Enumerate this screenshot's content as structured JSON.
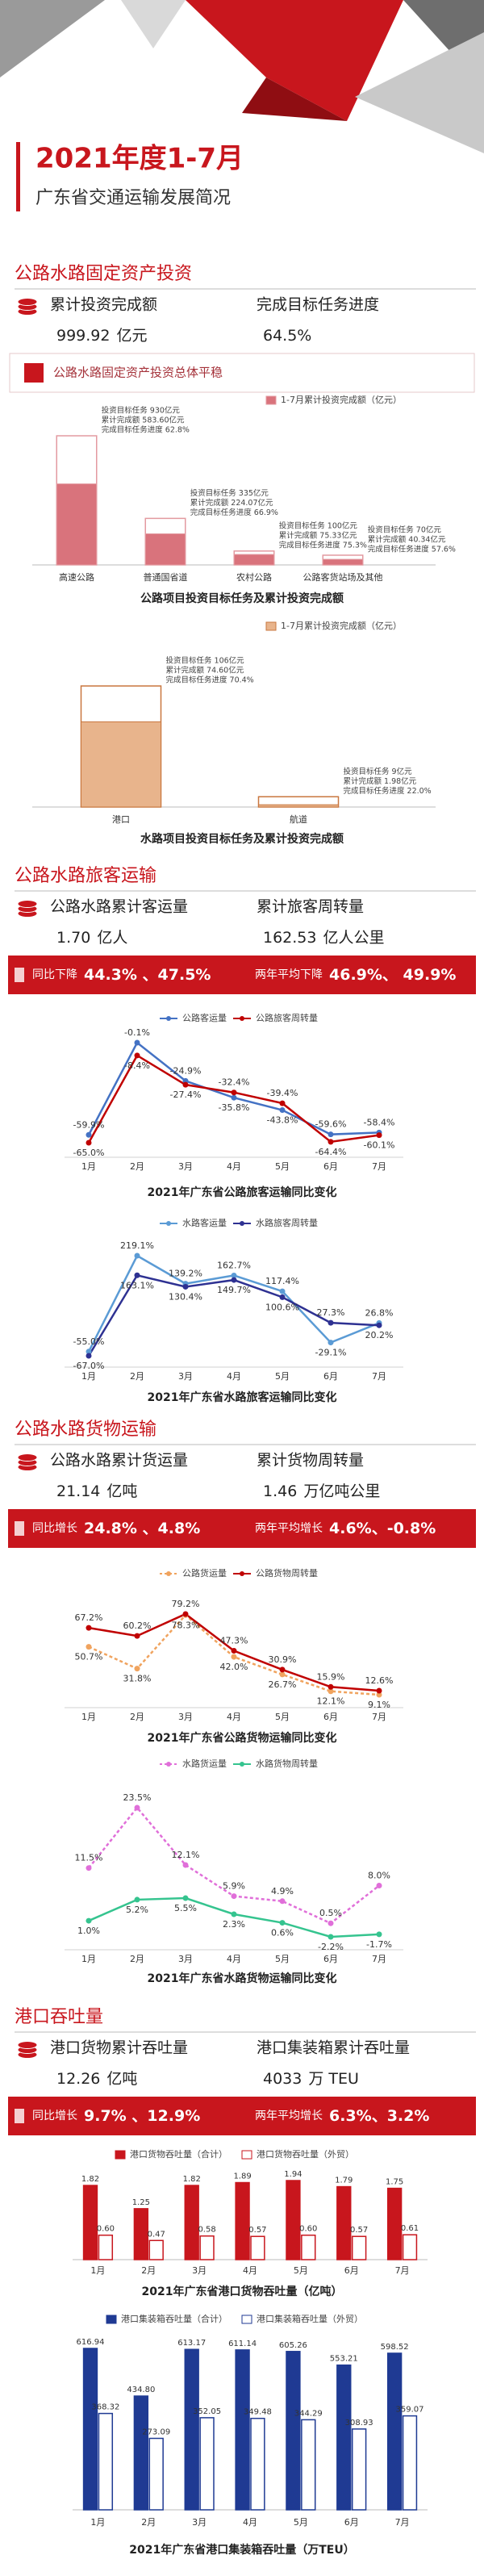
{
  "header": {
    "title": "2021年度1-7月",
    "subtitle": "广东省交通运输发展简况"
  },
  "sections": [
    {
      "heading": "公路水路固定资产投资",
      "stats": [
        {
          "label": "累计投资完成额",
          "value": "999.92",
          "unit": "亿元"
        },
        {
          "label": "完成目标任务进度",
          "value": "64.5%"
        }
      ],
      "banner": [
        "公路水路固定资产投资总体平稳"
      ]
    },
    {
      "heading": "公路水路旅客运输",
      "stats": [
        {
          "label": "公路水路累计客运量",
          "value": "1.70",
          "unit": "亿人"
        },
        {
          "label": "累计旅客周转量",
          "value": "162.53",
          "unit": "亿人公里"
        }
      ],
      "banner": [
        "同比下降",
        "44.3% 、47.5%",
        "两年平均下降",
        "46.9%、 49.9%"
      ]
    },
    {
      "heading": "公路水路货物运输",
      "stats": [
        {
          "label": "公路水路累计货运量",
          "value": "21.14",
          "unit": "亿吨"
        },
        {
          "label": "累计货物周转量",
          "value": "1.46",
          "unit": "万亿吨公里"
        }
      ],
      "banner": [
        "同比增长",
        "24.8% 、4.8%",
        "两年平均增长",
        "4.6%、-0.8%"
      ]
    },
    {
      "heading": "港口吞吐量",
      "stats": [
        {
          "label": "港口货物累计吞吐量",
          "value": "12.26",
          "unit": "亿吨"
        },
        {
          "label": "港口集装箱累计吞吐量",
          "value": "4033",
          "unit": "万 TEU"
        }
      ],
      "banner": [
        "同比增长",
        "9.7% 、12.9%",
        "两年平均增长",
        "6.3%、3.2%"
      ]
    }
  ],
  "chart_data": [
    {
      "type": "bar",
      "title": "公路项目投资目标任务及累计投资完成额",
      "categories": [
        "高速公路",
        "普通国省道",
        "农村公路",
        "公路客货站场及其他"
      ],
      "series": [
        {
          "name": "1-7月累计投资完成额（亿元）",
          "color": "#d9737c",
          "target_color": "#e39aa0",
          "values": [
            583.6,
            224.07,
            75.33,
            40.34
          ],
          "targets": [
            930,
            335,
            100,
            70
          ]
        }
      ],
      "annotations": [
        [
          "投资目标任务 930亿元",
          "累计完成额 583.60亿元",
          "完成目标任务进度 62.8%"
        ],
        [
          "投资目标任务 335亿元",
          "累计完成额 224.07亿元",
          "完成目标任务进度 66.9%"
        ],
        [
          "投资目标任务 100亿元",
          "累计完成额 75.33亿元",
          "完成目标任务进度 75.3%"
        ],
        [
          "投资目标任务 70亿元",
          "累计完成额 40.34亿元",
          "完成目标任务进度 57.6%"
        ]
      ]
    },
    {
      "type": "bar",
      "title": "水路项目投资目标任务及累计投资完成额",
      "categories": [
        "港口",
        "航道"
      ],
      "series": [
        {
          "name": "1-7月累计投资完成额（亿元）",
          "color": "#e8b48c",
          "target_color": "#c9773f",
          "values": [
            74.6,
            1.98
          ],
          "targets": [
            106,
            9
          ]
        }
      ],
      "annotations": [
        [
          "投资目标任务 106亿元",
          "累计完成额 74.60亿元",
          "完成目标任务进度 70.4%"
        ],
        [
          "投资目标任务 9亿元",
          "累计完成额 1.98亿元",
          "完成目标任务进度 22.0%"
        ]
      ]
    },
    {
      "type": "line",
      "title": "2021年广东省公路旅客运输同比变化",
      "categories": [
        "1月",
        "2月",
        "3月",
        "4月",
        "5月",
        "6月",
        "7月"
      ],
      "series": [
        {
          "name": "公路客运量",
          "color": "#4472c4",
          "values": [
            -59.9,
            -0.1,
            -24.9,
            -35.8,
            -43.8,
            -59.6,
            -58.4
          ],
          "value_labels": [
            "-59.9%",
            "-0.1%",
            "-24.9%",
            "-35.8%",
            "-43.8%",
            "-59.6%",
            "-58.4%"
          ]
        },
        {
          "name": "公路旅客周转量",
          "color": "#c00000",
          "values": [
            -65.0,
            -8.4,
            -27.4,
            -32.4,
            -39.4,
            -64.4,
            -60.1
          ],
          "value_labels": [
            "-65.0%",
            "-8.4%",
            "-27.4%",
            "-32.4%",
            "-39.4%",
            "-64.4%",
            "-60.1%"
          ]
        }
      ]
    },
    {
      "type": "line",
      "title": "2021年广东省水路旅客运输同比变化",
      "categories": [
        "1月",
        "2月",
        "3月",
        "4月",
        "5月",
        "6月",
        "7月"
      ],
      "series": [
        {
          "name": "水路客运量",
          "color": "#5b9bd5",
          "values": [
            -55.0,
            219.1,
            139.2,
            162.7,
            117.4,
            -29.1,
            26.8
          ],
          "value_labels": [
            "-55.0%",
            "219.1%",
            "139.2%",
            "162.7%",
            "117.4%",
            "-29.1%",
            "26.8%"
          ]
        },
        {
          "name": "水路旅客周转量",
          "color": "#2e3192",
          "values": [
            -67.0,
            163.1,
            130.4,
            149.7,
            100.6,
            27.3,
            20.2
          ],
          "value_labels": [
            "-67.0%",
            "163.1%",
            "130.4%",
            "149.7%",
            "100.6%",
            "27.3%",
            "20.2%"
          ]
        }
      ]
    },
    {
      "type": "line",
      "title": "2021年广东省公路货物运输同比变化",
      "categories": [
        "1月",
        "2月",
        "3月",
        "4月",
        "5月",
        "6月",
        "7月"
      ],
      "series": [
        {
          "name": "公路货运量",
          "color": "#f0a35e",
          "dashed": true,
          "values": [
            50.7,
            31.8,
            78.3,
            42.0,
            26.7,
            12.1,
            9.1
          ],
          "value_labels": [
            "50.7%",
            "31.8%",
            "78.3%",
            "42.0%",
            "26.7%",
            "12.1%",
            "9.1%"
          ]
        },
        {
          "name": "公路货物周转量",
          "color": "#c00000",
          "values": [
            67.2,
            60.2,
            79.2,
            47.3,
            30.9,
            15.9,
            12.6
          ],
          "value_labels": [
            "67.2%",
            "60.2%",
            "79.2%",
            "47.3%",
            "30.9%",
            "15.9%",
            "12.6%"
          ]
        }
      ]
    },
    {
      "type": "line",
      "title": "2021年广东省水路货物运输同比变化",
      "categories": [
        "1月",
        "2月",
        "3月",
        "4月",
        "5月",
        "6月",
        "7月"
      ],
      "series": [
        {
          "name": "水路货运量",
          "color": "#e06fd9",
          "dashed": true,
          "values": [
            11.5,
            23.5,
            12.1,
            5.9,
            4.9,
            0.5,
            8.0
          ],
          "value_labels": [
            "11.5%",
            "23.5%",
            "12.1%",
            "5.9%",
            "4.9%",
            "0.5%",
            "8.0%"
          ]
        },
        {
          "name": "水路货物周转量",
          "color": "#35c48f",
          "values": [
            1.0,
            5.2,
            5.5,
            2.3,
            0.6,
            -2.2,
            -1.7
          ],
          "value_labels": [
            "1.0%",
            "5.2%",
            "5.5%",
            "2.3%",
            "0.6%",
            "-2.2%",
            "-1.7%"
          ]
        }
      ]
    },
    {
      "type": "bar",
      "title": "2021年广东省港口货物吞吐量（亿吨）",
      "categories": [
        "1月",
        "2月",
        "3月",
        "4月",
        "5月",
        "6月",
        "7月"
      ],
      "series": [
        {
          "name": "港口货物吞吐量（合计）",
          "color": "#c8161d",
          "values": [
            1.82,
            1.25,
            1.82,
            1.89,
            1.94,
            1.79,
            1.75
          ]
        },
        {
          "name": "港口货物吞吐量（外贸）",
          "color": "#c8161d",
          "outline": true,
          "values": [
            0.6,
            0.47,
            0.58,
            0.57,
            0.6,
            0.57,
            0.61
          ],
          "value_labels": [
            "0.60",
            "0.47",
            "0.58",
            "0.57",
            "0.60",
            "0.57",
            "0.61"
          ]
        }
      ]
    },
    {
      "type": "bar",
      "title": "2021年广东省港口集装箱吞吐量（万TEU）",
      "categories": [
        "1月",
        "2月",
        "3月",
        "4月",
        "5月",
        "6月",
        "7月"
      ],
      "series": [
        {
          "name": "港口集装箱吞吐量（合计）",
          "color": "#1f3a93",
          "values": [
            616.94,
            434.8,
            613.17,
            611.14,
            605.26,
            553.21,
            598.52
          ],
          "value_labels": [
            "616.94",
            "434.80",
            "613.17",
            "611.14",
            "605.26",
            "553.21",
            "598.52"
          ]
        },
        {
          "name": "港口集装箱吞吐量（外贸）",
          "color": "#1f3a93",
          "outline": true,
          "values": [
            368.32,
            273.09,
            352.05,
            349.48,
            344.29,
            308.93,
            359.07
          ]
        }
      ]
    }
  ]
}
